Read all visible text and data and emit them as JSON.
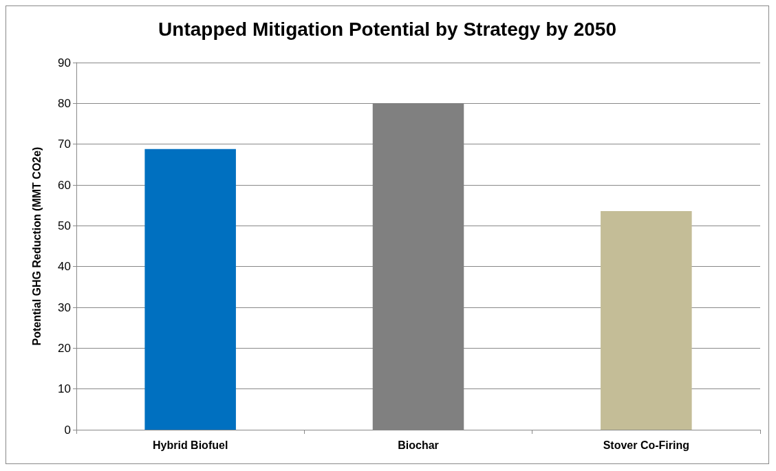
{
  "chart_data": {
    "type": "bar",
    "title": "Untapped Mitigation Potential by Strategy by 2050",
    "ylabel": "Potential GHG Reduction (MMT CO2e)",
    "categories": [
      "Hybrid Biofuel",
      "Biochar",
      "Stover Co-Firing"
    ],
    "values": [
      68.8,
      80,
      53.6
    ],
    "colors": [
      "#0070c0",
      "#808080",
      "#c4bd97"
    ],
    "ylim": [
      0,
      90
    ],
    "yticks": [
      0,
      10,
      20,
      30,
      40,
      50,
      60,
      70,
      80,
      90
    ],
    "grid": "y"
  }
}
